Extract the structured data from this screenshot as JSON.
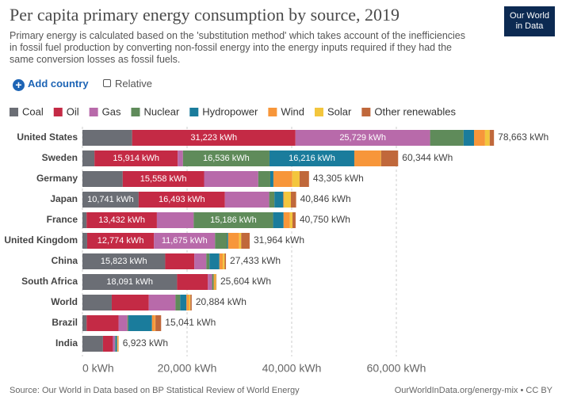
{
  "chart_data": {
    "type": "bar",
    "orientation": "horizontal",
    "stacked": true,
    "title": "Per capita primary energy consumption by source, 2019",
    "subtitle": "Primary energy is calculated based on the 'substitution method' which takes account of the inefficiencies in fossil fuel production by converting non-fossil energy into the energy inputs required if they had the same conversion losses as fossil fuels.",
    "categories": [
      "United States",
      "Sweden",
      "Germany",
      "Japan",
      "France",
      "United Kingdom",
      "China",
      "South Africa",
      "World",
      "Brazil",
      "India"
    ],
    "series": [
      {
        "name": "Coal",
        "color": "#6b6e75",
        "values": [
          9500,
          2300,
          7700,
          10741,
          800,
          900,
          15823,
          18091,
          5600,
          800,
          3923
        ],
        "value_labels": [
          null,
          null,
          null,
          "10,741 kWh",
          null,
          null,
          "15,823 kWh",
          "18,091 kWh",
          null,
          null,
          null
        ]
      },
      {
        "name": "Oil",
        "color": "#c42a45",
        "values": [
          31223,
          15914,
          15558,
          16493,
          13432,
          12774,
          5560,
          5893,
          7084,
          6100,
          1900
        ],
        "value_labels": [
          "31,223 kWh",
          "15,914 kWh",
          "15,558 kWh",
          "16,493 kWh",
          "13,432 kWh",
          "12,774 kWh",
          null,
          null,
          null,
          null,
          null
        ]
      },
      {
        "name": "Gas",
        "color": "#b86aaa",
        "values": [
          25729,
          1000,
          10347,
          8462,
          7032,
          11675,
          2300,
          800,
          5100,
          1700,
          400
        ],
        "value_labels": [
          "25,729 kWh",
          null,
          null,
          null,
          null,
          "11,675 kWh",
          null,
          null,
          null,
          null,
          null
        ]
      },
      {
        "name": "Nuclear",
        "color": "#5f8b5a",
        "values": [
          6400,
          16536,
          2300,
          1000,
          15186,
          2300,
          600,
          300,
          900,
          200,
          100
        ],
        "value_labels": [
          null,
          "16,536 kWh",
          null,
          null,
          "15,186 kWh",
          null,
          null,
          null,
          null,
          null,
          null
        ]
      },
      {
        "name": "Hydropower",
        "color": "#1a7c9c",
        "values": [
          2000,
          16216,
          600,
          1700,
          2000,
          200,
          1900,
          20,
          1200,
          4500,
          300
        ],
        "value_labels": [
          null,
          "16,216 kWh",
          null,
          null,
          null,
          null,
          null,
          null,
          null,
          null,
          null
        ]
      },
      {
        "name": "Wind",
        "color": "#f7963a",
        "values": [
          2100,
          5000,
          3600,
          150,
          1200,
          2100,
          650,
          200,
          500,
          600,
          150
        ],
        "value_labels": [
          null,
          null,
          null,
          null,
          null,
          null,
          null,
          null,
          null,
          null,
          null
        ]
      },
      {
        "name": "Solar",
        "color": "#f3c63d",
        "values": [
          900,
          100,
          1400,
          1300,
          500,
          400,
          350,
          200,
          250,
          50,
          100
        ],
        "value_labels": [
          null,
          null,
          null,
          null,
          null,
          null,
          null,
          null,
          null,
          null,
          null
        ]
      },
      {
        "name": "Other renewables",
        "color": "#c0683b",
        "values": [
          811,
          3278,
          1800,
          1000,
          600,
          1615,
          250,
          100,
          250,
          1091,
          50
        ],
        "value_labels": [
          null,
          null,
          null,
          null,
          null,
          null,
          null,
          null,
          null,
          null,
          null
        ]
      }
    ],
    "total_labels": [
      "78,663 kWh",
      "60,344 kWh",
      "43,305 kWh",
      "40,846 kWh",
      "40,750 kWh",
      "31,964 kWh",
      "27,433 kWh",
      "25,604 kWh",
      "20,884 kWh",
      "15,041 kWh",
      "6,923 kWh"
    ],
    "xlim": [
      0,
      80000
    ],
    "xticks": [
      {
        "value": 0,
        "label": "0 kWh"
      },
      {
        "value": 20000,
        "label": "20,000 kWh"
      },
      {
        "value": 40000,
        "label": "40,000 kWh"
      },
      {
        "value": 60000,
        "label": "60,000 kWh"
      }
    ],
    "grid": true
  },
  "logo": [
    "Our World",
    "in Data"
  ],
  "controls": {
    "add_country": "Add country",
    "relative": "Relative"
  },
  "source": "Source: Our World in Data based on BP Statistical Review of World Energy",
  "footer_right": "OurWorldInData.org/energy-mix • CC BY"
}
